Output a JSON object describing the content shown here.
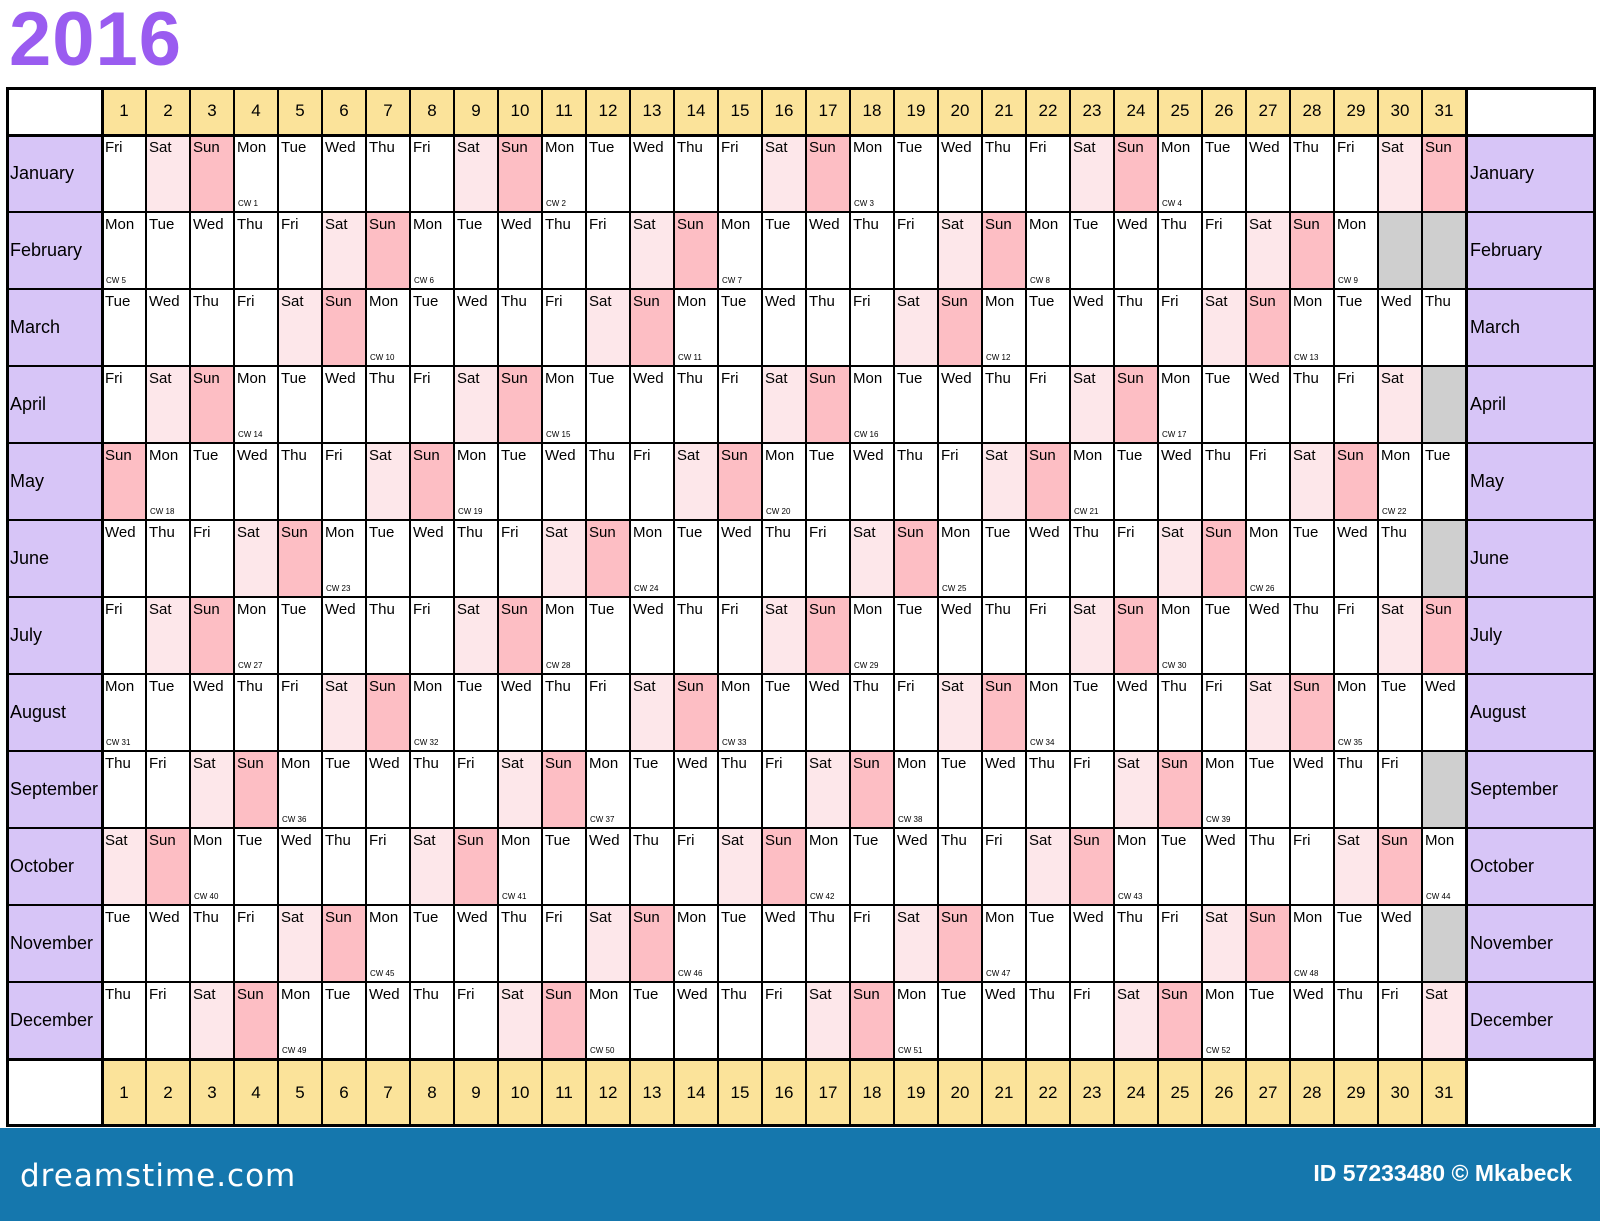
{
  "year": "2016",
  "days": [
    "1",
    "2",
    "3",
    "4",
    "5",
    "6",
    "7",
    "8",
    "9",
    "10",
    "11",
    "12",
    "13",
    "14",
    "15",
    "16",
    "17",
    "18",
    "19",
    "20",
    "21",
    "22",
    "23",
    "24",
    "25",
    "26",
    "27",
    "28",
    "29",
    "30",
    "31"
  ],
  "months": [
    {
      "name": "January",
      "length": 31,
      "start": "Fri",
      "cw_labels": {
        "4": "CW 1",
        "11": "CW 2",
        "18": "CW 3",
        "25": "CW 4"
      }
    },
    {
      "name": "February",
      "length": 29,
      "start": "Mon",
      "cw_labels": {
        "1": "CW 5",
        "8": "CW 6",
        "15": "CW 7",
        "22": "CW 8",
        "29": "CW 9"
      }
    },
    {
      "name": "March",
      "length": 31,
      "start": "Tue",
      "cw_labels": {
        "7": "CW 10",
        "14": "CW 11",
        "21": "CW 12",
        "28": "CW 13"
      }
    },
    {
      "name": "April",
      "length": 30,
      "start": "Fri",
      "cw_labels": {
        "4": "CW 14",
        "11": "CW 15",
        "18": "CW 16",
        "25": "CW 17"
      }
    },
    {
      "name": "May",
      "length": 31,
      "start": "Sun",
      "cw_labels": {
        "2": "CW 18",
        "9": "CW 19",
        "16": "CW 20",
        "23": "CW 21",
        "30": "CW 22"
      }
    },
    {
      "name": "June",
      "length": 30,
      "start": "Wed",
      "cw_labels": {
        "6": "CW 23",
        "13": "CW 24",
        "20": "CW 25",
        "27": "CW 26"
      }
    },
    {
      "name": "July",
      "length": 31,
      "start": "Fri",
      "cw_labels": {
        "4": "CW 27",
        "11": "CW 28",
        "18": "CW 29",
        "25": "CW 30"
      }
    },
    {
      "name": "August",
      "length": 31,
      "start": "Mon",
      "cw_labels": {
        "1": "CW 31",
        "8": "CW 32",
        "15": "CW 33",
        "22": "CW 34",
        "29": "CW 35"
      }
    },
    {
      "name": "September",
      "length": 30,
      "start": "Thu",
      "cw_labels": {
        "5": "CW 36",
        "12": "CW 37",
        "19": "CW 38",
        "26": "CW 39"
      }
    },
    {
      "name": "October",
      "length": 31,
      "start": "Sat",
      "cw_labels": {
        "3": "CW 40",
        "10": "CW 41",
        "17": "CW 42",
        "24": "CW 43",
        "31": "CW 44"
      }
    },
    {
      "name": "November",
      "length": 30,
      "start": "Tue",
      "cw_labels": {
        "7": "CW 45",
        "14": "CW 46",
        "21": "CW 47",
        "28": "CW 48"
      }
    },
    {
      "name": "December",
      "length": 31,
      "start": "Thu",
      "cw_labels": {
        "5": "CW 49",
        "12": "CW 50",
        "19": "CW 51",
        "26": "CW 52"
      }
    }
  ],
  "weekdays": [
    "Mon",
    "Tue",
    "Wed",
    "Thu",
    "Fri",
    "Sat",
    "Sun"
  ],
  "colors": {
    "title": "#9a5cf0",
    "day_header": "#fbe39a",
    "month_label": "#d7c5f7",
    "sunday": "#fdbec4",
    "saturday": "#fde7ea",
    "unused_day": "#cfcfcf",
    "footer": "#1577ad"
  },
  "footer": {
    "brand": "dreamstime.com",
    "credit": "ID 57233480 © Mkabeck"
  }
}
